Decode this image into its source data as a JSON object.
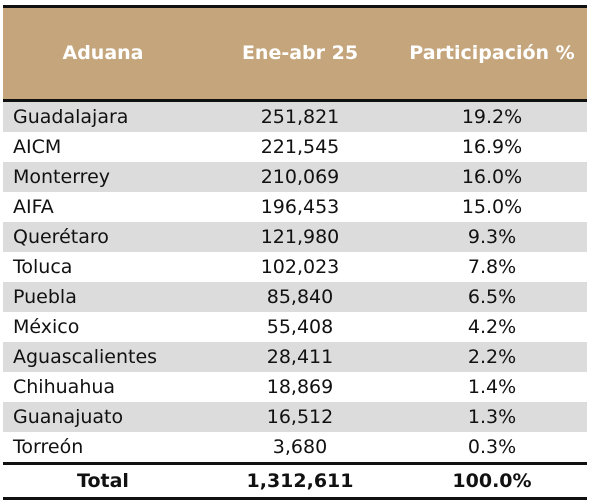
{
  "table": {
    "headers": [
      "Aduana",
      "Ene-abr 25",
      "Participación %"
    ],
    "rows": [
      {
        "aduana": "Guadalajara",
        "value": "251,821",
        "share": "19.2%"
      },
      {
        "aduana": "AICM",
        "value": "221,545",
        "share": "16.9%"
      },
      {
        "aduana": "Monterrey",
        "value": "210,069",
        "share": "16.0%"
      },
      {
        "aduana": "AIFA",
        "value": "196,453",
        "share": "15.0%"
      },
      {
        "aduana": "Querétaro",
        "value": "121,980",
        "share": "9.3%"
      },
      {
        "aduana": "Toluca",
        "value": "102,023",
        "share": "7.8%"
      },
      {
        "aduana": "Puebla",
        "value": "85,840",
        "share": "6.5%"
      },
      {
        "aduana": "México",
        "value": "55,408",
        "share": "4.2%"
      },
      {
        "aduana": "Aguascalientes",
        "value": "28,411",
        "share": "2.2%"
      },
      {
        "aduana": "Chihuahua",
        "value": "18,869",
        "share": "1.4%"
      },
      {
        "aduana": "Guanajuato",
        "value": "16,512",
        "share": "1.3%"
      },
      {
        "aduana": "Torreón",
        "value": "3,680",
        "share": "0.3%"
      }
    ],
    "total": {
      "label": "Total",
      "value": "1,312,611",
      "share": "100.0%"
    }
  },
  "colors": {
    "header_bg": "#c4a57c",
    "header_text": "#ffffff",
    "row_shade": "#dcdcdc",
    "rule": "#111111"
  }
}
